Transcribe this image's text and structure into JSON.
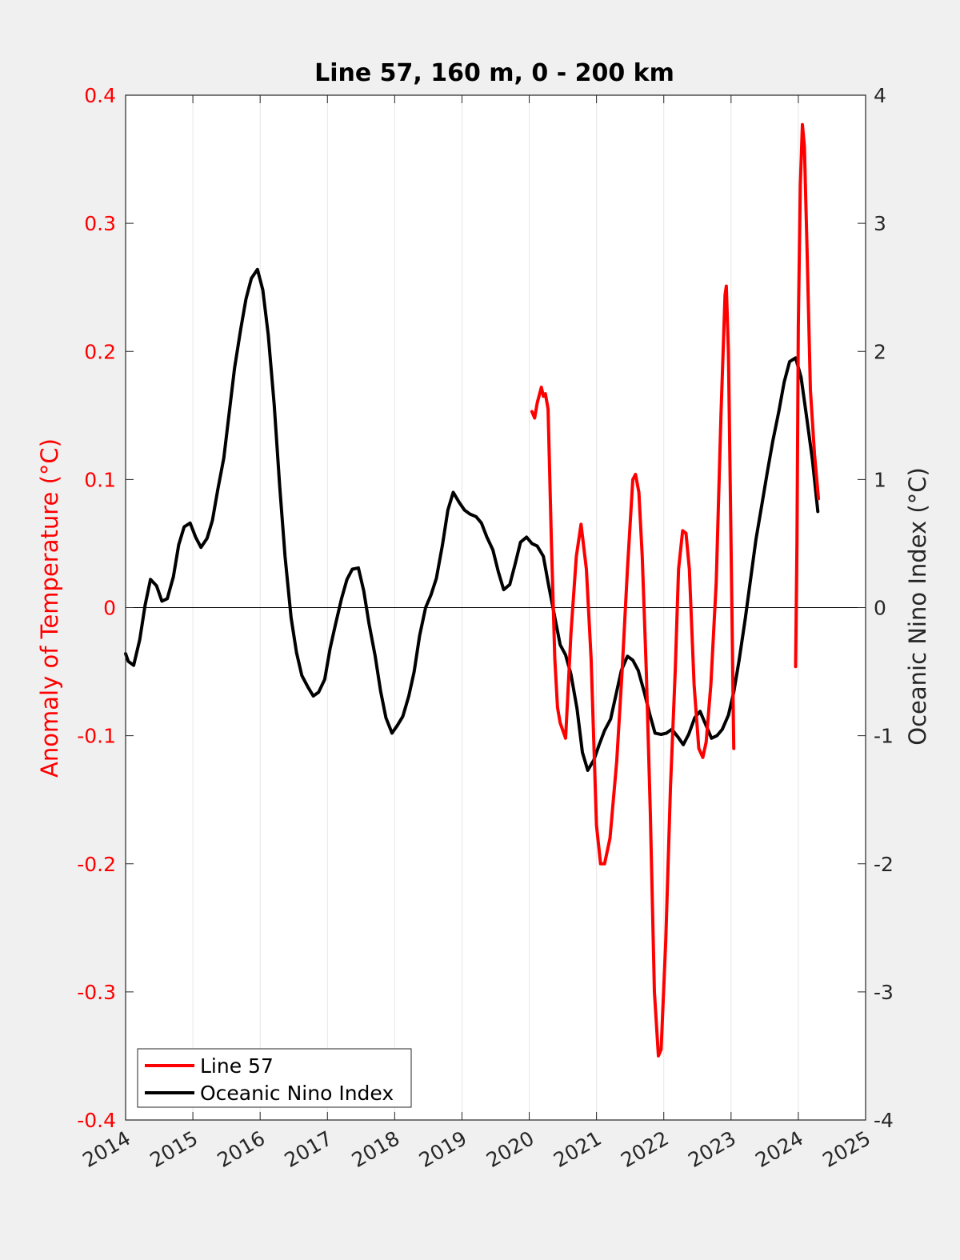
{
  "chart_data": {
    "type": "line",
    "title": "Line 57, 160 m, 0 - 200 km",
    "xlabel": "",
    "ylabel_left": "Anomaly of Temperature (°C)",
    "ylabel_right": "Oceanic Nino Index (°C)",
    "xlim": [
      2014,
      2025
    ],
    "ylim_left": [
      -0.4,
      0.4
    ],
    "ylim_right": [
      -4,
      4
    ],
    "x_ticks": [
      "2014",
      "2015",
      "2016",
      "2017",
      "2018",
      "2019",
      "2020",
      "2021",
      "2022",
      "2023",
      "2024",
      "2025"
    ],
    "y_ticks_left": [
      "-0.4",
      "-0.3",
      "-0.2",
      "-0.1",
      "0",
      "0.1",
      "0.2",
      "0.3",
      "0.4"
    ],
    "y_ticks_right": [
      "-4",
      "-3",
      "-2",
      "-1",
      "0",
      "1",
      "2",
      "3",
      "4"
    ],
    "grid": "x-only",
    "zero_line": true,
    "legend_position": "bottom-left",
    "colors": {
      "line57": "#ff0000",
      "oni": "#000000",
      "axis_left": "#ff0000",
      "axis_right": "#262626"
    },
    "series": [
      {
        "name": "Line 57",
        "axis": "left",
        "color": "#ff0000",
        "segments": [
          [
            [
              2020.04,
              0.153
            ],
            [
              2020.08,
              0.148
            ],
            [
              2020.12,
              0.16
            ],
            [
              2020.18,
              0.172
            ],
            [
              2020.21,
              0.165
            ],
            [
              2020.24,
              0.167
            ],
            [
              2020.28,
              0.155
            ],
            [
              2020.33,
              0.05
            ],
            [
              2020.38,
              -0.04
            ],
            [
              2020.42,
              -0.078
            ],
            [
              2020.46,
              -0.09
            ],
            [
              2020.54,
              -0.102
            ],
            [
              2020.62,
              -0.02
            ],
            [
              2020.7,
              0.04
            ],
            [
              2020.77,
              0.065
            ],
            [
              2020.85,
              0.03
            ],
            [
              2020.92,
              -0.04
            ],
            [
              2021.0,
              -0.17
            ],
            [
              2021.06,
              -0.2
            ],
            [
              2021.12,
              -0.2
            ],
            [
              2021.2,
              -0.18
            ],
            [
              2021.3,
              -0.12
            ],
            [
              2021.38,
              -0.05
            ],
            [
              2021.46,
              0.03
            ],
            [
              2021.54,
              0.1
            ],
            [
              2021.58,
              0.104
            ],
            [
              2021.63,
              0.09
            ],
            [
              2021.68,
              0.04
            ],
            [
              2021.74,
              -0.05
            ],
            [
              2021.8,
              -0.16
            ],
            [
              2021.86,
              -0.3
            ],
            [
              2021.92,
              -0.35
            ],
            [
              2021.96,
              -0.345
            ],
            [
              2022.03,
              -0.26
            ],
            [
              2022.1,
              -0.14
            ],
            [
              2022.17,
              -0.05
            ],
            [
              2022.22,
              0.03
            ],
            [
              2022.28,
              0.06
            ],
            [
              2022.33,
              0.058
            ],
            [
              2022.38,
              0.03
            ],
            [
              2022.45,
              -0.06
            ],
            [
              2022.52,
              -0.11
            ],
            [
              2022.58,
              -0.117
            ],
            [
              2022.63,
              -0.105
            ],
            [
              2022.7,
              -0.06
            ],
            [
              2022.78,
              0.02
            ],
            [
              2022.85,
              0.15
            ],
            [
              2022.91,
              0.244
            ],
            [
              2022.93,
              0.251
            ],
            [
              2022.96,
              0.2
            ],
            [
              2023.0,
              0.05
            ],
            [
              2023.04,
              -0.11
            ]
          ],
          [
            [
              2023.96,
              -0.046
            ],
            [
              2023.98,
              0.05
            ],
            [
              2024.0,
              0.22
            ],
            [
              2024.03,
              0.33
            ],
            [
              2024.06,
              0.377
            ],
            [
              2024.09,
              0.36
            ],
            [
              2024.13,
              0.28
            ],
            [
              2024.18,
              0.17
            ],
            [
              2024.24,
              0.12
            ],
            [
              2024.3,
              0.085
            ]
          ]
        ]
      },
      {
        "name": "Oceanic Nino Index",
        "axis": "right",
        "color": "#000000",
        "segments": [
          [
            [
              2014.0,
              -0.36
            ],
            [
              2014.04,
              -0.42
            ],
            [
              2014.12,
              -0.45
            ],
            [
              2014.21,
              -0.25
            ],
            [
              2014.29,
              0.02
            ],
            [
              2014.37,
              0.22
            ],
            [
              2014.46,
              0.17
            ],
            [
              2014.54,
              0.05
            ],
            [
              2014.62,
              0.07
            ],
            [
              2014.71,
              0.24
            ],
            [
              2014.79,
              0.49
            ],
            [
              2014.87,
              0.63
            ],
            [
              2014.96,
              0.66
            ],
            [
              2015.04,
              0.55
            ],
            [
              2015.12,
              0.47
            ],
            [
              2015.21,
              0.54
            ],
            [
              2015.29,
              0.68
            ],
            [
              2015.37,
              0.92
            ],
            [
              2015.46,
              1.17
            ],
            [
              2015.54,
              1.52
            ],
            [
              2015.62,
              1.87
            ],
            [
              2015.71,
              2.17
            ],
            [
              2015.79,
              2.41
            ],
            [
              2015.87,
              2.57
            ],
            [
              2015.96,
              2.64
            ],
            [
              2016.04,
              2.48
            ],
            [
              2016.12,
              2.13
            ],
            [
              2016.21,
              1.58
            ],
            [
              2016.29,
              0.95
            ],
            [
              2016.37,
              0.4
            ],
            [
              2016.46,
              -0.08
            ],
            [
              2016.54,
              -0.35
            ],
            [
              2016.62,
              -0.53
            ],
            [
              2016.71,
              -0.62
            ],
            [
              2016.79,
              -0.69
            ],
            [
              2016.87,
              -0.66
            ],
            [
              2016.96,
              -0.56
            ],
            [
              2017.04,
              -0.32
            ],
            [
              2017.12,
              -0.13
            ],
            [
              2017.21,
              0.07
            ],
            [
              2017.29,
              0.22
            ],
            [
              2017.37,
              0.3
            ],
            [
              2017.46,
              0.31
            ],
            [
              2017.54,
              0.13
            ],
            [
              2017.62,
              -0.13
            ],
            [
              2017.71,
              -0.38
            ],
            [
              2017.79,
              -0.65
            ],
            [
              2017.87,
              -0.86
            ],
            [
              2017.96,
              -0.98
            ],
            [
              2018.04,
              -0.92
            ],
            [
              2018.12,
              -0.85
            ],
            [
              2018.21,
              -0.69
            ],
            [
              2018.29,
              -0.5
            ],
            [
              2018.37,
              -0.22
            ],
            [
              2018.46,
              0.0
            ],
            [
              2018.54,
              0.1
            ],
            [
              2018.62,
              0.23
            ],
            [
              2018.71,
              0.49
            ],
            [
              2018.79,
              0.76
            ],
            [
              2018.87,
              0.9
            ],
            [
              2018.96,
              0.82
            ],
            [
              2019.04,
              0.76
            ],
            [
              2019.12,
              0.73
            ],
            [
              2019.21,
              0.71
            ],
            [
              2019.29,
              0.66
            ],
            [
              2019.37,
              0.55
            ],
            [
              2019.46,
              0.45
            ],
            [
              2019.54,
              0.28
            ],
            [
              2019.62,
              0.14
            ],
            [
              2019.71,
              0.18
            ],
            [
              2019.79,
              0.34
            ],
            [
              2019.87,
              0.51
            ],
            [
              2019.96,
              0.55
            ],
            [
              2020.04,
              0.5
            ],
            [
              2020.12,
              0.48
            ],
            [
              2020.21,
              0.4
            ],
            [
              2020.29,
              0.17
            ],
            [
              2020.37,
              -0.05
            ],
            [
              2020.46,
              -0.29
            ],
            [
              2020.54,
              -0.37
            ],
            [
              2020.62,
              -0.52
            ],
            [
              2020.71,
              -0.79
            ],
            [
              2020.79,
              -1.13
            ],
            [
              2020.87,
              -1.27
            ],
            [
              2020.96,
              -1.19
            ],
            [
              2021.04,
              -1.07
            ],
            [
              2021.12,
              -0.96
            ],
            [
              2021.21,
              -0.87
            ],
            [
              2021.29,
              -0.68
            ],
            [
              2021.37,
              -0.49
            ],
            [
              2021.46,
              -0.38
            ],
            [
              2021.54,
              -0.41
            ],
            [
              2021.62,
              -0.49
            ],
            [
              2021.71,
              -0.66
            ],
            [
              2021.79,
              -0.83
            ],
            [
              2021.87,
              -0.98
            ],
            [
              2021.96,
              -0.99
            ],
            [
              2022.04,
              -0.98
            ],
            [
              2022.12,
              -0.95
            ],
            [
              2022.21,
              -1.01
            ],
            [
              2022.29,
              -1.07
            ],
            [
              2022.37,
              -0.99
            ],
            [
              2022.46,
              -0.86
            ],
            [
              2022.54,
              -0.81
            ],
            [
              2022.62,
              -0.91
            ],
            [
              2022.71,
              -1.02
            ],
            [
              2022.79,
              -1.0
            ],
            [
              2022.87,
              -0.95
            ],
            [
              2022.96,
              -0.84
            ],
            [
              2023.04,
              -0.66
            ],
            [
              2023.12,
              -0.41
            ],
            [
              2023.21,
              -0.09
            ],
            [
              2023.29,
              0.22
            ],
            [
              2023.37,
              0.53
            ],
            [
              2023.46,
              0.81
            ],
            [
              2023.54,
              1.06
            ],
            [
              2023.62,
              1.3
            ],
            [
              2023.71,
              1.53
            ],
            [
              2023.79,
              1.76
            ],
            [
              2023.87,
              1.92
            ],
            [
              2023.96,
              1.95
            ],
            [
              2024.04,
              1.8
            ],
            [
              2024.12,
              1.5
            ],
            [
              2024.21,
              1.15
            ],
            [
              2024.29,
              0.75
            ]
          ]
        ]
      }
    ]
  }
}
